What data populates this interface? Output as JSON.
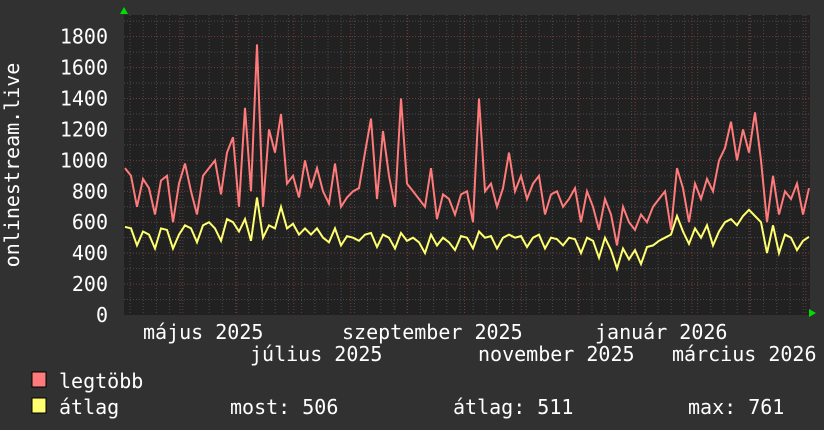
{
  "chart_data": {
    "type": "line",
    "ylabel": "onlinestream.live",
    "ylim": [
      0,
      1940
    ],
    "y_ticks": [
      "0",
      "200",
      "400",
      "600",
      "800",
      "1000",
      "1200",
      "1400",
      "1600",
      "1800"
    ],
    "x_tick_labels": [
      "május 2025",
      "július 2025",
      "szeptember 2025",
      "november 2025",
      "január 2026",
      "március 2026"
    ],
    "grid": true,
    "legend_placement": "bottom-left",
    "series": [
      {
        "name": "legtöbb",
        "color": "#ff7b7b",
        "values": [
          950,
          900,
          700,
          880,
          820,
          650,
          870,
          900,
          600,
          850,
          980,
          800,
          650,
          900,
          950,
          1000,
          780,
          1050,
          1150,
          700,
          1340,
          800,
          1750,
          700,
          1200,
          1050,
          1300,
          850,
          900,
          760,
          1000,
          820,
          950,
          800,
          720,
          980,
          700,
          760,
          800,
          820,
          1050,
          1270,
          750,
          1190,
          900,
          700,
          1400,
          850,
          800,
          750,
          700,
          950,
          620,
          780,
          750,
          650,
          780,
          800,
          600,
          1400,
          800,
          850,
          700,
          820,
          1050,
          800,
          900,
          750,
          850,
          900,
          650,
          780,
          800,
          700,
          750,
          820,
          600,
          800,
          700,
          550,
          750,
          650,
          450,
          700,
          600,
          550,
          650,
          600,
          700,
          750,
          800,
          550,
          950,
          820,
          600,
          850,
          750,
          880,
          800,
          1000,
          1080,
          1250,
          1000,
          1200,
          1050,
          1310,
          1000,
          600,
          900,
          650,
          800,
          750,
          850,
          650,
          820
        ]
      },
      {
        "name": "átlag",
        "color": "#ffff70",
        "values": [
          570,
          560,
          450,
          540,
          520,
          430,
          560,
          550,
          430,
          520,
          580,
          560,
          470,
          580,
          600,
          560,
          480,
          620,
          600,
          540,
          620,
          480,
          760,
          500,
          580,
          560,
          700,
          560,
          590,
          520,
          560,
          520,
          560,
          500,
          470,
          560,
          450,
          510,
          500,
          480,
          520,
          530,
          440,
          520,
          500,
          430,
          530,
          480,
          500,
          470,
          400,
          520,
          450,
          500,
          470,
          420,
          510,
          500,
          430,
          540,
          500,
          510,
          430,
          500,
          520,
          500,
          510,
          440,
          500,
          520,
          430,
          500,
          490,
          450,
          500,
          490,
          400,
          500,
          480,
          370,
          500,
          420,
          300,
          430,
          360,
          420,
          330,
          440,
          450,
          480,
          500,
          520,
          640,
          540,
          460,
          560,
          500,
          580,
          450,
          540,
          600,
          620,
          580,
          640,
          680,
          640,
          600,
          400,
          580,
          400,
          520,
          500,
          420,
          480,
          506
        ]
      }
    ],
    "legend": {
      "max_label": "legtöbb",
      "avg_label": "átlag",
      "most": "most: 506",
      "atlag": "átlag: 511",
      "max": "max: 761"
    }
  }
}
